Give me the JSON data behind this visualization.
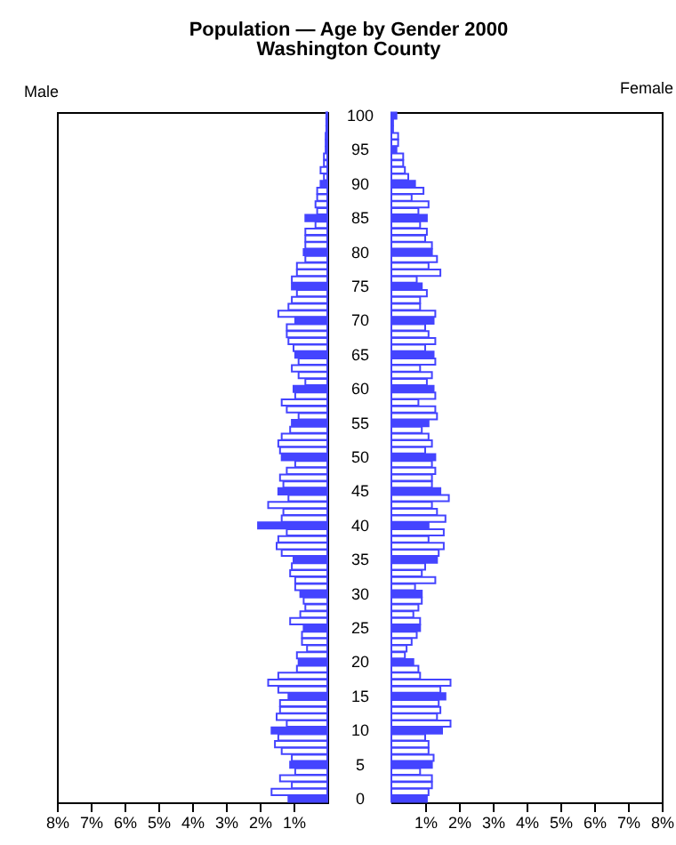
{
  "chart_data": [
    {
      "type": "bar",
      "orientation": "horizontal",
      "title": "Population — Age by Gender 2000",
      "subtitle": "Washington County",
      "xlabel": "Male",
      "color": "#4444ff",
      "tick_labels": "x",
      "categories": [
        "100",
        null,
        null,
        null,
        null,
        "95",
        null,
        null,
        null,
        null,
        "90",
        null,
        null,
        null,
        null,
        "85",
        null,
        null,
        null,
        null,
        "80",
        null,
        null,
        null,
        null,
        "75",
        null,
        null,
        null,
        null,
        "70",
        null,
        null,
        null,
        null,
        "65",
        null,
        null,
        null,
        null,
        "60",
        null,
        null,
        null,
        null,
        "55",
        null,
        null,
        null,
        null,
        "50",
        null,
        null,
        null,
        null,
        "45",
        null,
        null,
        null,
        null,
        "40",
        null,
        null,
        null,
        null,
        "35",
        null,
        null,
        null,
        null,
        "30",
        null,
        null,
        null,
        null,
        "25",
        null,
        null,
        null,
        null,
        "20",
        null,
        null,
        null,
        null,
        "15",
        null,
        null,
        null,
        null,
        "10",
        null,
        null,
        null,
        null,
        "5",
        null,
        null,
        null,
        null,
        "0"
      ],
      "values": [
        0.03,
        0.03,
        0.03,
        0.05,
        0.05,
        0.05,
        0.1,
        0.1,
        0.2,
        0.1,
        0.2,
        0.3,
        0.3,
        0.35,
        0.3,
        0.65,
        0.35,
        0.65,
        0.65,
        0.65,
        0.7,
        0.65,
        0.9,
        0.9,
        1.05,
        1.05,
        0.9,
        1.05,
        1.15,
        1.45,
        0.95,
        1.2,
        1.2,
        1.15,
        1.0,
        0.95,
        0.85,
        1.05,
        0.85,
        0.65,
        1.0,
        0.95,
        1.35,
        1.2,
        0.85,
        1.05,
        1.1,
        1.35,
        1.45,
        1.4,
        1.35,
        0.95,
        1.2,
        1.4,
        1.3,
        1.45,
        1.15,
        1.75,
        1.3,
        1.35,
        2.05,
        1.2,
        1.45,
        1.5,
        1.35,
        1.0,
        1.05,
        1.1,
        0.95,
        0.95,
        0.8,
        0.7,
        0.65,
        0.8,
        1.1,
        0.7,
        0.75,
        0.75,
        0.6,
        0.9,
        0.85,
        0.9,
        1.45,
        1.75,
        1.45,
        1.15,
        1.4,
        1.4,
        1.5,
        1.2,
        1.65,
        1.45,
        1.55,
        1.35,
        1.05,
        1.1,
        0.95,
        1.4,
        1.05,
        1.65,
        1.15
      ],
      "colors": [
        "#4444ff",
        "#ffffff",
        "#ffffff",
        "#ffffff",
        "#ffffff",
        "#4444ff",
        "#ffffff",
        "#ffffff",
        "#ffffff",
        "#ffffff",
        "#4444ff",
        "#ffffff",
        "#ffffff",
        "#ffffff",
        "#ffffff",
        "#4444ff",
        "#ffffff",
        "#ffffff",
        "#ffffff",
        "#ffffff",
        "#4444ff",
        "#ffffff",
        "#ffffff",
        "#ffffff",
        "#ffffff",
        "#4444ff",
        "#ffffff",
        "#ffffff",
        "#ffffff",
        "#ffffff",
        "#4444ff",
        "#ffffff",
        "#ffffff",
        "#ffffff",
        "#ffffff",
        "#4444ff",
        "#ffffff",
        "#ffffff",
        "#ffffff",
        "#ffffff",
        "#4444ff",
        "#ffffff",
        "#ffffff",
        "#ffffff",
        "#ffffff",
        "#4444ff",
        "#ffffff",
        "#ffffff",
        "#ffffff",
        "#ffffff",
        "#4444ff",
        "#ffffff",
        "#ffffff",
        "#ffffff",
        "#ffffff",
        "#4444ff",
        "#ffffff",
        "#ffffff",
        "#ffffff",
        "#ffffff",
        "#4444ff",
        "#ffffff",
        "#ffffff",
        "#ffffff",
        "#ffffff",
        "#4444ff",
        "#ffffff",
        "#ffffff",
        "#ffffff",
        "#ffffff",
        "#4444ff",
        "#ffffff",
        "#ffffff",
        "#ffffff",
        "#ffffff",
        "#4444ff",
        "#ffffff",
        "#ffffff",
        "#ffffff",
        "#ffffff",
        "#4444ff",
        "#ffffff",
        "#ffffff",
        "#ffffff",
        "#ffffff",
        "#4444ff",
        "#ffffff",
        "#ffffff",
        "#ffffff",
        "#ffffff",
        "#4444ff",
        "#ffffff",
        "#ffffff",
        "#ffffff",
        "#ffffff",
        "#4444ff",
        "#ffffff",
        "#ffffff",
        "#ffffff",
        "#ffffff",
        "#4444ff"
      ],
      "xlim": [
        8,
        0
      ],
      "xticks": [
        {
          "value": 8,
          "label": "8%"
        },
        {
          "value": 7,
          "label": "7%"
        },
        {
          "value": 6,
          "label": "6%"
        },
        {
          "value": 5,
          "label": "5%"
        },
        {
          "value": 4,
          "label": "4%"
        },
        {
          "value": 3,
          "label": "3%"
        },
        {
          "value": 2,
          "label": "2%"
        },
        {
          "value": 1,
          "label": "1%"
        }
      ]
    },
    {
      "type": "bar",
      "orientation": "horizontal",
      "xlabel": "Female",
      "color": "#4444ff",
      "categories": [
        "100",
        null,
        null,
        null,
        null,
        "95",
        null,
        null,
        null,
        null,
        "90",
        null,
        null,
        null,
        null,
        "85",
        null,
        null,
        null,
        null,
        "80",
        null,
        null,
        null,
        null,
        "75",
        null,
        null,
        null,
        null,
        "70",
        null,
        null,
        null,
        null,
        "65",
        null,
        null,
        null,
        null,
        "60",
        null,
        null,
        null,
        null,
        "55",
        null,
        null,
        null,
        null,
        "50",
        null,
        null,
        null,
        null,
        "45",
        null,
        null,
        null,
        null,
        "40",
        null,
        null,
        null,
        null,
        "35",
        null,
        null,
        null,
        null,
        "30",
        null,
        null,
        null,
        null,
        "25",
        null,
        null,
        null,
        null,
        "20",
        null,
        null,
        null,
        null,
        "15",
        null,
        null,
        null,
        null,
        "10",
        null,
        null,
        null,
        null,
        "5",
        null,
        null,
        null,
        null,
        "0"
      ],
      "values": [
        0.15,
        0.05,
        0.05,
        0.2,
        0.2,
        0.15,
        0.35,
        0.35,
        0.4,
        0.5,
        0.7,
        0.95,
        0.6,
        1.1,
        0.8,
        1.05,
        0.85,
        1.05,
        1.0,
        1.2,
        1.2,
        1.35,
        1.1,
        1.45,
        0.75,
        0.9,
        1.05,
        0.85,
        0.85,
        1.3,
        1.25,
        1.0,
        1.1,
        1.3,
        1.0,
        1.25,
        1.3,
        0.85,
        1.2,
        1.05,
        1.25,
        1.3,
        0.8,
        1.3,
        1.35,
        1.1,
        0.9,
        1.1,
        1.2,
        1.0,
        1.3,
        1.2,
        1.3,
        1.2,
        1.2,
        1.45,
        1.7,
        1.2,
        1.35,
        1.6,
        1.1,
        1.55,
        1.1,
        1.55,
        1.4,
        1.35,
        1.0,
        0.9,
        1.3,
        0.7,
        0.9,
        0.9,
        0.8,
        0.65,
        0.85,
        0.85,
        0.75,
        0.6,
        0.45,
        0.4,
        0.65,
        0.8,
        0.85,
        1.75,
        1.45,
        1.6,
        1.4,
        1.45,
        1.35,
        1.75,
        1.5,
        1.0,
        1.1,
        1.1,
        1.25,
        1.2,
        0.85,
        1.2,
        1.2,
        1.1,
        1.05
      ],
      "colors": [
        "#4444ff",
        "#ffffff",
        "#ffffff",
        "#ffffff",
        "#ffffff",
        "#4444ff",
        "#ffffff",
        "#ffffff",
        "#ffffff",
        "#ffffff",
        "#4444ff",
        "#ffffff",
        "#ffffff",
        "#ffffff",
        "#ffffff",
        "#4444ff",
        "#ffffff",
        "#ffffff",
        "#ffffff",
        "#ffffff",
        "#4444ff",
        "#ffffff",
        "#ffffff",
        "#ffffff",
        "#ffffff",
        "#4444ff",
        "#ffffff",
        "#ffffff",
        "#ffffff",
        "#ffffff",
        "#4444ff",
        "#ffffff",
        "#ffffff",
        "#ffffff",
        "#ffffff",
        "#4444ff",
        "#ffffff",
        "#ffffff",
        "#ffffff",
        "#ffffff",
        "#4444ff",
        "#ffffff",
        "#ffffff",
        "#ffffff",
        "#ffffff",
        "#4444ff",
        "#ffffff",
        "#ffffff",
        "#ffffff",
        "#ffffff",
        "#4444ff",
        "#ffffff",
        "#ffffff",
        "#ffffff",
        "#ffffff",
        "#4444ff",
        "#ffffff",
        "#ffffff",
        "#ffffff",
        "#ffffff",
        "#4444ff",
        "#ffffff",
        "#ffffff",
        "#ffffff",
        "#ffffff",
        "#4444ff",
        "#ffffff",
        "#ffffff",
        "#ffffff",
        "#ffffff",
        "#4444ff",
        "#ffffff",
        "#ffffff",
        "#ffffff",
        "#ffffff",
        "#4444ff",
        "#ffffff",
        "#ffffff",
        "#ffffff",
        "#ffffff",
        "#4444ff",
        "#ffffff",
        "#ffffff",
        "#ffffff",
        "#ffffff",
        "#4444ff",
        "#ffffff",
        "#ffffff",
        "#ffffff",
        "#ffffff",
        "#4444ff",
        "#ffffff",
        "#ffffff",
        "#ffffff",
        "#ffffff",
        "#4444ff",
        "#ffffff",
        "#ffffff",
        "#ffffff",
        "#ffffff",
        "#4444ff"
      ],
      "xlim": [
        0,
        8
      ],
      "xticks": [
        {
          "value": 1,
          "label": "1%"
        },
        {
          "value": 2,
          "label": "2%"
        },
        {
          "value": 3,
          "label": "3%"
        },
        {
          "value": 4,
          "label": "4%"
        },
        {
          "value": 5,
          "label": "5%"
        },
        {
          "value": 6,
          "label": "6%"
        },
        {
          "value": 7,
          "label": "7%"
        },
        {
          "value": 8,
          "label": "8%"
        }
      ]
    }
  ]
}
